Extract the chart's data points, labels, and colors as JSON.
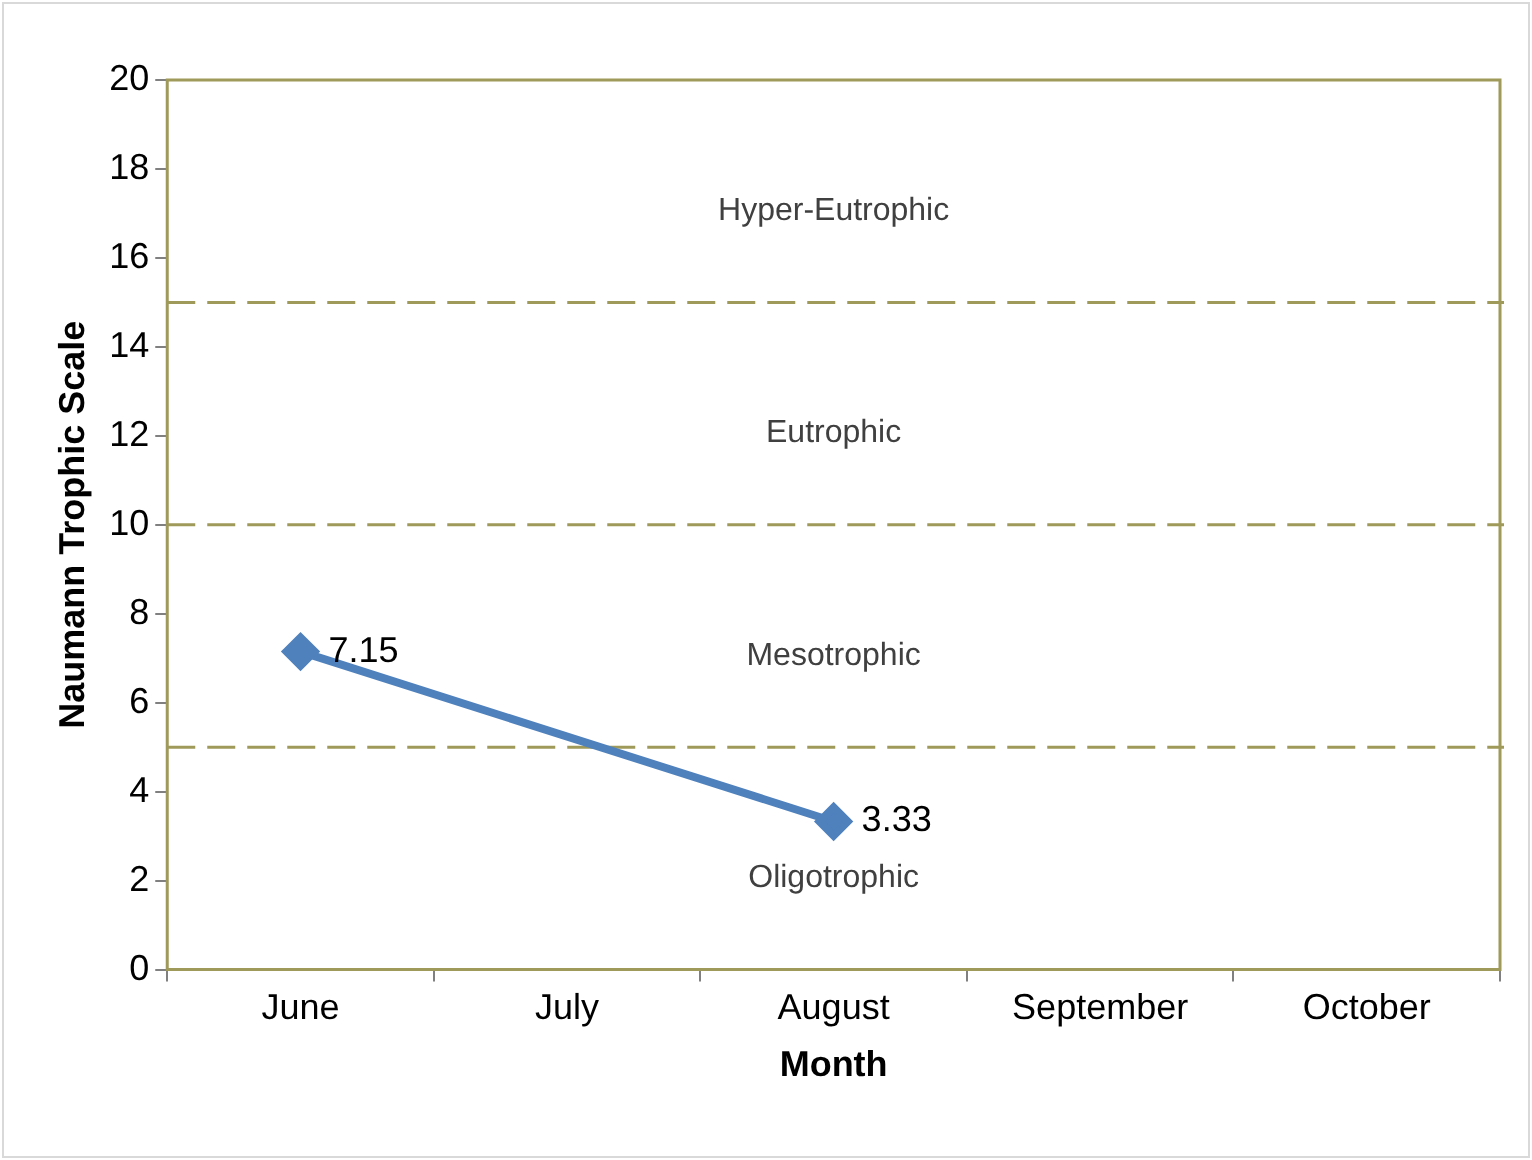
{
  "chart_data": {
    "type": "line",
    "xlabel": "Month",
    "ylabel": "Naumann Trophic Scale",
    "categories": [
      "June",
      "July",
      "August",
      "September",
      "October"
    ],
    "series": [
      {
        "color": "#4f81bd",
        "values": [
          7.15,
          null,
          3.33,
          null,
          null
        ],
        "value_labels": [
          "7.15",
          null,
          "3.33",
          null,
          null
        ]
      }
    ],
    "ylim": [
      0,
      20
    ],
    "yticks": [
      0,
      2,
      4,
      6,
      8,
      10,
      12,
      14,
      16,
      18,
      20
    ],
    "marker": "diamond",
    "line_style": "solid",
    "grid": false,
    "legend": false,
    "ref_lines": [
      {
        "axis": "y",
        "value": 5,
        "color": "#a09a5a",
        "line_style": "dashed"
      },
      {
        "axis": "y",
        "value": 10,
        "color": "#a09a5a",
        "line_style": "dashed"
      },
      {
        "axis": "y",
        "value": 15,
        "color": "#a09a5a",
        "line_style": "dashed"
      }
    ],
    "annotations": [
      "Hyper-Eutrophic",
      "Eutrophic",
      "Mesotrophic",
      "Oligotrophic"
    ]
  }
}
